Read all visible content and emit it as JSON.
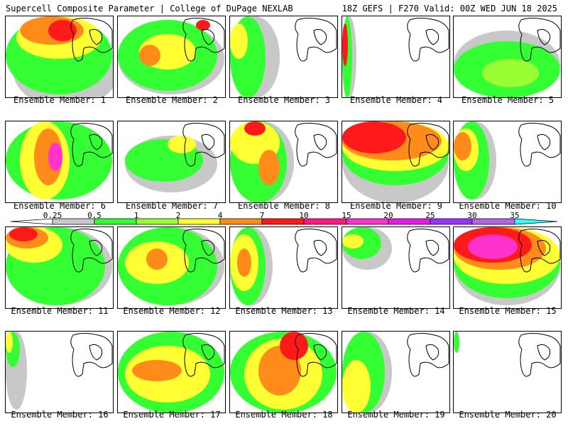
{
  "header": {
    "title": "Supercell Composite Parameter | College of DuPage NEXLAB",
    "run_info": "18Z GEFS | F270 Valid: 00Z WED JUN 18 2025"
  },
  "colorbar": {
    "ticks": [
      "0.25",
      "0.5",
      "1",
      "2",
      "4",
      "7",
      "10",
      "15",
      "20",
      "25",
      "30",
      "35"
    ],
    "colors": [
      "#ffffff",
      "#c8c8c8",
      "#33ff33",
      "#99ff33",
      "#ffff33",
      "#ff8c1a",
      "#ff1a1a",
      "#ff1a80",
      "#ff33cc",
      "#e61ae6",
      "#9933ff",
      "#b366e6",
      "#33ffff"
    ]
  },
  "panels": [
    {
      "label": "Ensemble Member: 1"
    },
    {
      "label": "Ensemble Member: 2"
    },
    {
      "label": "Ensemble Member: 3"
    },
    {
      "label": "Ensemble Member: 4"
    },
    {
      "label": "Ensemble Member: 5"
    },
    {
      "label": "Ensemble Member: 6"
    },
    {
      "label": "Ensemble Member: 7"
    },
    {
      "label": "Ensemble Member: 8"
    },
    {
      "label": "Ensemble Member: 9"
    },
    {
      "label": "Ensemble Member: 10"
    },
    {
      "label": "Ensemble Member: 11"
    },
    {
      "label": "Ensemble Member: 12"
    },
    {
      "label": "Ensemble Member: 13"
    },
    {
      "label": "Ensemble Member: 14"
    },
    {
      "label": "Ensemble Member: 15"
    },
    {
      "label": "Ensemble Member: 16"
    },
    {
      "label": "Ensemble Member: 17"
    },
    {
      "label": "Ensemble Member: 18"
    },
    {
      "label": "Ensemble Member: 19"
    },
    {
      "label": "Ensemble Member: 20"
    }
  ]
}
